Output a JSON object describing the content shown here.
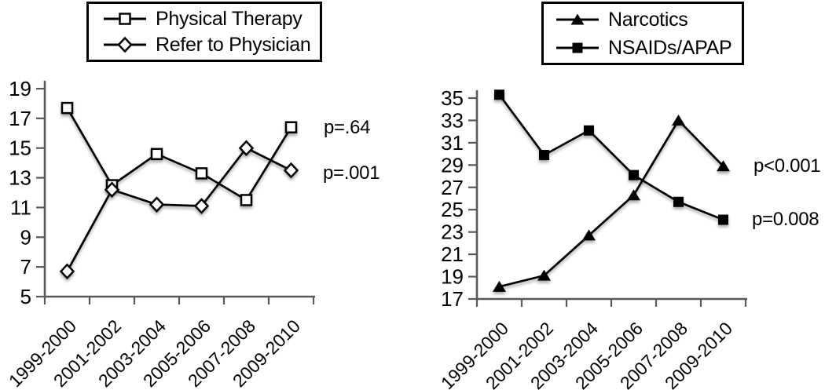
{
  "colors": {
    "axis": "#595959",
    "series_line": "#000000",
    "text": "#000000",
    "background": "#ffffff"
  },
  "chart_data": [
    {
      "type": "line",
      "title": "",
      "legend_position": "top",
      "grid": false,
      "ylim": [
        5,
        19
      ],
      "ystep": 2,
      "categories": [
        "1999-2000",
        "2001-2002",
        "2003-2004",
        "2005-2006",
        "2007-2008",
        "2009-2010"
      ],
      "legend": [
        {
          "label": "Physical Therapy",
          "marker": "open-square"
        },
        {
          "label": "Refer to Physician",
          "marker": "open-diamond"
        }
      ],
      "series": [
        {
          "name": "Physical Therapy",
          "marker": "open-square",
          "values": [
            17.7,
            12.5,
            14.6,
            13.3,
            11.5,
            16.4
          ]
        },
        {
          "name": "Refer to Physician",
          "marker": "open-diamond",
          "values": [
            6.7,
            12.2,
            11.2,
            11.1,
            15.0,
            13.5
          ]
        }
      ],
      "annotations": [
        {
          "text": "p=.64"
        },
        {
          "text": "p=.001"
        }
      ]
    },
    {
      "type": "line",
      "title": "",
      "legend_position": "top",
      "grid": false,
      "ylim": [
        17,
        35
      ],
      "ystep": 2,
      "categories": [
        "1999-2000",
        "2001-2002",
        "2003-2004",
        "2005-2006",
        "2007-2008",
        "2009-2010"
      ],
      "legend": [
        {
          "label": "Narcotics",
          "marker": "filled-triangle"
        },
        {
          "label": "NSAIDs/APAP",
          "marker": "filled-square"
        }
      ],
      "series": [
        {
          "name": "Narcotics",
          "marker": "filled-triangle",
          "values": [
            18.1,
            19.1,
            22.7,
            26.3,
            33.0,
            28.9
          ]
        },
        {
          "name": "NSAIDs/APAP",
          "marker": "filled-square",
          "values": [
            35.3,
            29.9,
            32.1,
            28.1,
            25.7,
            24.1
          ]
        }
      ],
      "annotations": [
        {
          "text": "p<0.001"
        },
        {
          "text": "p=0.008"
        }
      ]
    }
  ]
}
